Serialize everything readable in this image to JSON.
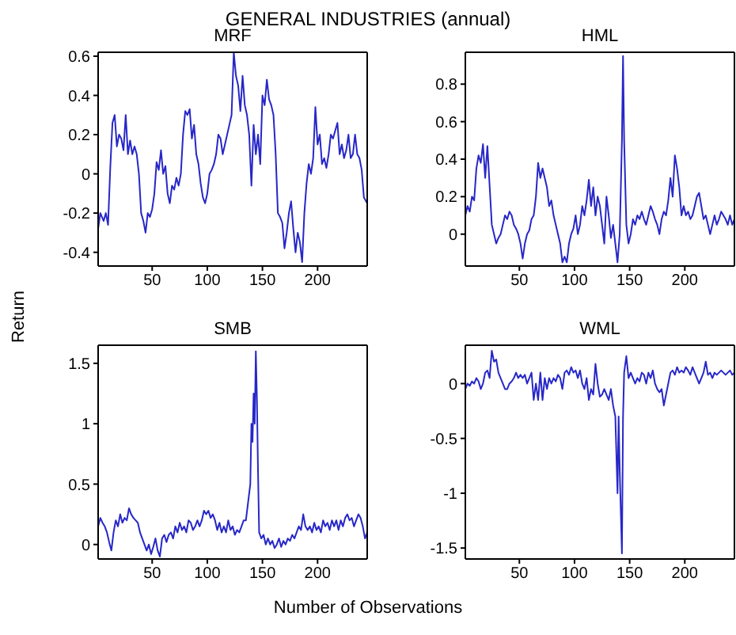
{
  "chart_data": [
    {
      "type": "line",
      "title": "GENERAL INDUSTRIES (annual)",
      "subtitle": "MRF",
      "xlabel": "Number of Observations",
      "ylabel": "Return",
      "xlim": [
        1,
        245
      ],
      "xticks": [
        50,
        100,
        150,
        200
      ],
      "ylim": [
        -0.47,
        0.62
      ],
      "yticks": [
        -0.4,
        -0.2,
        0,
        0.2,
        0.4,
        0.6
      ],
      "x": [
        1,
        3,
        6,
        8,
        10,
        12,
        14,
        16,
        18,
        20,
        22,
        24,
        26,
        28,
        30,
        32,
        34,
        36,
        38,
        40,
        42,
        44,
        46,
        48,
        50,
        52,
        54,
        56,
        58,
        60,
        62,
        64,
        66,
        68,
        70,
        72,
        74,
        76,
        78,
        80,
        82,
        84,
        86,
        88,
        90,
        92,
        94,
        96,
        98,
        100,
        102,
        104,
        106,
        108,
        110,
        112,
        114,
        116,
        118,
        120,
        122,
        124,
        126,
        128,
        130,
        132,
        134,
        136,
        138,
        140,
        142,
        144,
        146,
        148,
        150,
        152,
        154,
        156,
        158,
        160,
        162,
        164,
        166,
        168,
        170,
        172,
        174,
        176,
        178,
        180,
        182,
        184,
        186,
        188,
        190,
        192,
        194,
        196,
        198,
        200,
        202,
        204,
        206,
        208,
        210,
        212,
        214,
        216,
        218,
        220,
        222,
        224,
        226,
        228,
        230,
        232,
        234,
        236,
        238,
        240,
        242,
        245
      ],
      "series": [
        {
          "color": "#2727c8",
          "values": [
            -0.28,
            -0.2,
            -0.24,
            -0.2,
            -0.26,
            0.03,
            0.26,
            0.3,
            0.14,
            0.2,
            0.18,
            0.12,
            0.3,
            0.1,
            0.17,
            0.1,
            0.14,
            0.1,
            0,
            -0.2,
            -0.24,
            -0.3,
            -0.2,
            -0.22,
            -0.18,
            -0.1,
            0.06,
            0.02,
            0.12,
            0,
            0.04,
            -0.1,
            -0.15,
            -0.06,
            -0.08,
            -0.02,
            -0.06,
            0,
            0.2,
            0.32,
            0.3,
            0.33,
            0.18,
            0.25,
            0.1,
            0.05,
            -0.05,
            -0.12,
            -0.15,
            -0.1,
            0,
            0.02,
            0.05,
            0.1,
            0.2,
            0.18,
            0.1,
            0.15,
            0.2,
            0.25,
            0.3,
            0.62,
            0.5,
            0.45,
            0.32,
            0.5,
            0.35,
            0.3,
            0.2,
            -0.06,
            0.25,
            0.1,
            0.2,
            0.05,
            0.4,
            0.35,
            0.48,
            0.38,
            0.35,
            0.3,
            0.1,
            -0.2,
            -0.22,
            -0.25,
            -0.38,
            -0.3,
            -0.2,
            -0.14,
            -0.28,
            -0.4,
            -0.3,
            -0.35,
            -0.45,
            -0.2,
            -0.05,
            0.05,
            0,
            0.08,
            0.34,
            0.15,
            0.2,
            0.05,
            0.08,
            0.03,
            0.1,
            0.2,
            0.18,
            0.22,
            0.26,
            0.1,
            0.15,
            0.08,
            0.12,
            0.2,
            0.08,
            0.1,
            0.2,
            0.1,
            0.08,
            0.02,
            -0.12,
            -0.15
          ]
        }
      ]
    },
    {
      "type": "line",
      "subtitle": "HML",
      "xlim": [
        1,
        245
      ],
      "xticks": [
        50,
        100,
        150,
        200
      ],
      "ylim": [
        -0.17,
        0.97
      ],
      "yticks": [
        0,
        0.2,
        0.4,
        0.6,
        0.8
      ],
      "x": [
        1,
        3,
        5,
        7,
        9,
        11,
        13,
        15,
        17,
        19,
        21,
        23,
        25,
        27,
        29,
        31,
        33,
        35,
        37,
        39,
        41,
        43,
        45,
        47,
        49,
        51,
        53,
        55,
        57,
        59,
        61,
        63,
        65,
        67,
        69,
        71,
        73,
        75,
        77,
        79,
        81,
        83,
        85,
        87,
        89,
        91,
        93,
        95,
        97,
        99,
        101,
        103,
        105,
        107,
        109,
        111,
        113,
        115,
        117,
        119,
        121,
        123,
        125,
        127,
        129,
        131,
        133,
        135,
        137,
        139,
        141,
        143,
        144,
        145,
        147,
        149,
        151,
        153,
        155,
        157,
        159,
        161,
        163,
        165,
        167,
        169,
        171,
        173,
        175,
        177,
        179,
        181,
        183,
        185,
        187,
        189,
        191,
        193,
        195,
        197,
        199,
        201,
        203,
        205,
        207,
        209,
        211,
        213,
        215,
        217,
        219,
        221,
        223,
        225,
        227,
        229,
        231,
        233,
        235,
        237,
        239,
        241,
        243,
        245
      ],
      "series": [
        {
          "color": "#2727c8",
          "values": [
            0.1,
            0.15,
            0.12,
            0.2,
            0.18,
            0.35,
            0.42,
            0.38,
            0.48,
            0.3,
            0.47,
            0.26,
            0.05,
            0,
            -0.05,
            -0.02,
            0,
            0.05,
            0.1,
            0.08,
            0.12,
            0.1,
            0.05,
            0.03,
            0,
            -0.05,
            -0.13,
            -0.05,
            0,
            0.02,
            0.08,
            0.1,
            0.2,
            0.38,
            0.3,
            0.35,
            0.3,
            0.25,
            0.15,
            0.18,
            0.1,
            0.05,
            0,
            -0.05,
            -0.15,
            -0.12,
            -0.15,
            -0.05,
            0,
            0.03,
            0.1,
            0,
            0.05,
            0.15,
            0.1,
            0.18,
            0.29,
            0.15,
            0.25,
            0.1,
            0.2,
            0.15,
            0.05,
            -0.05,
            0.2,
            0.1,
            -0.02,
            0.05,
            -0.05,
            -0.15,
            0,
            0.5,
            0.95,
            0.5,
            0.05,
            -0.05,
            0,
            0.08,
            0.05,
            0.1,
            0.08,
            0.12,
            0.08,
            0.05,
            0.1,
            0.15,
            0.12,
            0.08,
            0.05,
            0,
            0.08,
            0.12,
            0.1,
            0.18,
            0.3,
            0.2,
            0.42,
            0.35,
            0.25,
            0.1,
            0.15,
            0.1,
            0.12,
            0.08,
            0.1,
            0.15,
            0.2,
            0.22,
            0.15,
            0.08,
            0.1,
            0.05,
            0,
            0.05,
            0.1,
            0.05,
            0.08,
            0.12,
            0.1,
            0.08,
            0.05,
            0.1,
            0.05,
            0.08
          ]
        }
      ]
    },
    {
      "type": "line",
      "subtitle": "SMB",
      "xlim": [
        1,
        245
      ],
      "xticks": [
        50,
        100,
        150,
        200
      ],
      "ylim": [
        -0.12,
        1.65
      ],
      "yticks": [
        0,
        0.5,
        1,
        1.5
      ],
      "x": [
        1,
        3,
        5,
        7,
        9,
        11,
        13,
        15,
        17,
        19,
        21,
        23,
        25,
        27,
        29,
        31,
        33,
        35,
        37,
        39,
        41,
        43,
        45,
        47,
        49,
        51,
        53,
        55,
        57,
        59,
        61,
        63,
        65,
        67,
        69,
        71,
        73,
        75,
        77,
        79,
        81,
        83,
        85,
        87,
        89,
        91,
        93,
        95,
        97,
        99,
        101,
        103,
        105,
        107,
        109,
        111,
        113,
        115,
        117,
        119,
        121,
        123,
        125,
        127,
        129,
        131,
        133,
        135,
        137,
        139,
        140,
        141,
        142,
        143,
        144,
        145,
        146,
        147,
        149,
        151,
        153,
        155,
        157,
        159,
        161,
        163,
        165,
        167,
        169,
        171,
        173,
        175,
        177,
        179,
        181,
        183,
        185,
        187,
        189,
        191,
        193,
        195,
        197,
        199,
        201,
        203,
        205,
        207,
        209,
        211,
        213,
        215,
        217,
        219,
        221,
        223,
        225,
        227,
        229,
        231,
        233,
        235,
        237,
        239,
        241,
        243,
        245
      ],
      "series": [
        {
          "color": "#2727c8",
          "values": [
            0.15,
            0.22,
            0.18,
            0.15,
            0.1,
            0.02,
            -0.05,
            0.1,
            0.2,
            0.15,
            0.25,
            0.18,
            0.22,
            0.2,
            0.3,
            0.25,
            0.22,
            0.2,
            0.18,
            0.1,
            0.05,
            0,
            -0.05,
            0,
            -0.08,
            -0.02,
            0.05,
            -0.05,
            -0.1,
            0.05,
            0.08,
            0.02,
            0.08,
            0.1,
            0.05,
            0.15,
            0.1,
            0.18,
            0.12,
            0.15,
            0.1,
            0.2,
            0.18,
            0.12,
            0.15,
            0.2,
            0.15,
            0.2,
            0.28,
            0.25,
            0.28,
            0.22,
            0.25,
            0.2,
            0.12,
            0.18,
            0.1,
            0.15,
            0.1,
            0.2,
            0.12,
            0.15,
            0.08,
            0.12,
            0.1,
            0.15,
            0.2,
            0.2,
            0.35,
            0.5,
            1,
            0.85,
            1.25,
            1,
            1.6,
            1.2,
            0.6,
            0.1,
            0.05,
            0.08,
            0,
            0.05,
            0,
            0.03,
            -0.03,
            0,
            0.05,
            -0.02,
            0.03,
            0,
            0.05,
            0.03,
            0.08,
            0.05,
            0.1,
            0.15,
            0.12,
            0.25,
            0.15,
            0.12,
            0.15,
            0.1,
            0.18,
            0.12,
            0.15,
            0.1,
            0.2,
            0.15,
            0.18,
            0.12,
            0.2,
            0.15,
            0.2,
            0.12,
            0.2,
            0.15,
            0.22,
            0.25,
            0.2,
            0.22,
            0.15,
            0.2,
            0.25,
            0.22,
            0.15,
            0.05,
            0.1
          ]
        }
      ]
    },
    {
      "type": "line",
      "subtitle": "WML",
      "xlim": [
        1,
        245
      ],
      "xticks": [
        50,
        100,
        150,
        200
      ],
      "ylim": [
        -1.6,
        0.35
      ],
      "yticks": [
        -1.5,
        -1,
        -0.5,
        0
      ],
      "x": [
        1,
        3,
        5,
        7,
        9,
        11,
        13,
        15,
        17,
        19,
        21,
        23,
        25,
        27,
        29,
        31,
        33,
        35,
        37,
        39,
        41,
        43,
        45,
        47,
        49,
        51,
        53,
        55,
        57,
        59,
        61,
        63,
        65,
        67,
        69,
        71,
        73,
        75,
        77,
        79,
        81,
        83,
        85,
        87,
        89,
        91,
        93,
        95,
        97,
        99,
        101,
        103,
        105,
        107,
        109,
        111,
        113,
        115,
        117,
        119,
        121,
        123,
        125,
        127,
        129,
        131,
        133,
        135,
        137,
        139,
        140,
        141,
        143,
        144,
        145,
        147,
        149,
        151,
        153,
        155,
        157,
        159,
        161,
        163,
        165,
        167,
        169,
        171,
        173,
        175,
        177,
        179,
        181,
        183,
        185,
        187,
        189,
        191,
        193,
        195,
        197,
        199,
        201,
        203,
        205,
        207,
        209,
        211,
        213,
        215,
        217,
        219,
        221,
        223,
        225,
        227,
        229,
        231,
        233,
        235,
        237,
        239,
        241,
        243,
        245
      ],
      "series": [
        {
          "color": "#2727c8",
          "values": [
            -0.05,
            0,
            -0.02,
            0.02,
            0,
            0.05,
            0.02,
            -0.05,
            0,
            0.1,
            0.12,
            0.05,
            0.3,
            0.2,
            0.22,
            0.1,
            0.05,
            0,
            -0.05,
            -0.05,
            0,
            0.02,
            0.05,
            0.1,
            0.05,
            0.08,
            0.05,
            0.08,
            0,
            0.05,
            0.1,
            -0.15,
            0,
            -0.15,
            0.1,
            -0.15,
            0.05,
            -0.05,
            0.05,
            0,
            0.05,
            0.02,
            0.08,
            0.05,
            -0.05,
            0.1,
            0.12,
            0.08,
            0.15,
            0.1,
            0.12,
            0.05,
            0.12,
            0,
            -0.05,
            0.05,
            -0.15,
            -0.05,
            -0.1,
            0.18,
            0,
            -0.12,
            -0.1,
            -0.05,
            -0.1,
            -0.15,
            -0.05,
            -0.2,
            -0.3,
            -1,
            -0.3,
            -0.8,
            -1.55,
            -0.3,
            0.1,
            0.25,
            0.05,
            0.1,
            0.05,
            0,
            0.05,
            0.02,
            0.1,
            0.08,
            0,
            0.1,
            0.05,
            0.12,
            0,
            -0.05,
            -0.08,
            -0.05,
            -0.2,
            -0.1,
            0,
            0.1,
            0.12,
            0.08,
            0.15,
            0.1,
            0.12,
            0.1,
            0.15,
            0.12,
            0.08,
            0.15,
            0.1,
            0.05,
            0,
            0.05,
            0.1,
            0.2,
            0.08,
            0.1,
            0.05,
            0.1,
            0.08,
            0.1,
            0.12,
            0.1,
            0.08,
            0.1,
            0.12,
            0.08,
            0.1
          ]
        }
      ]
    }
  ]
}
